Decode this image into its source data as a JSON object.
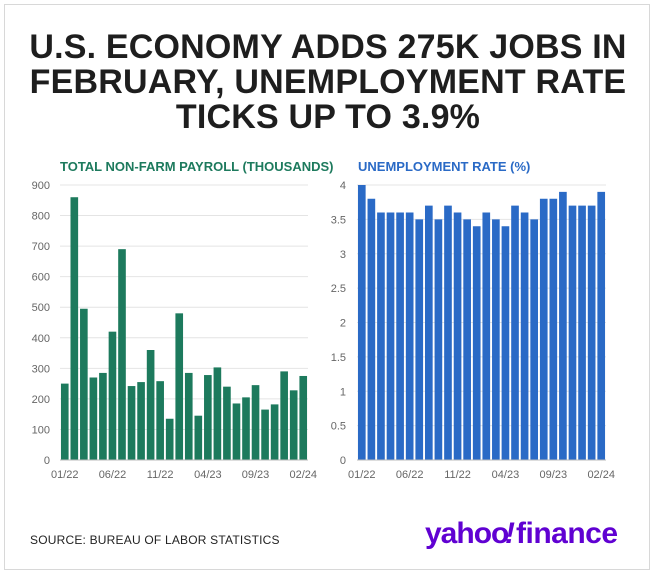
{
  "headline": {
    "line1": "U.S. ECONOMY ADDS 275K JOBS IN",
    "line2": "FEBRUARY, UNEMPLOYMENT RATE",
    "line3": "TICKS UP TO 3.9%"
  },
  "source": "SOURCE: BUREAU OF LABOR STATISTICS",
  "logo": {
    "text_part1": "yahoo",
    "text_part2": "!",
    "text_part3": "finance"
  },
  "colors": {
    "payroll": "#1d7a5d",
    "unemployment": "#2a6ac6",
    "logo": "#6001d2",
    "headline": "#1e1e1e"
  },
  "chart_data": [
    {
      "type": "bar",
      "title": "TOTAL NON-FARM PAYROLL (THOUSANDS)",
      "ylim": [
        0,
        900
      ],
      "yticks": [
        "0",
        "100",
        "200",
        "300",
        "400",
        "500",
        "600",
        "700",
        "800",
        "900"
      ],
      "xticks": [
        "01/22",
        "06/22",
        "11/22",
        "04/23",
        "09/23",
        "02/24"
      ],
      "values": [
        250,
        860,
        495,
        270,
        285,
        420,
        690,
        242,
        255,
        360,
        258,
        135,
        480,
        285,
        145,
        278,
        303,
        240,
        185,
        205,
        245,
        165,
        182,
        290,
        228,
        275
      ]
    },
    {
      "type": "bar",
      "title": "UNEMPLOYMENT RATE (%)",
      "ylim": [
        0,
        4
      ],
      "yticks": [
        "0",
        "0.5",
        "1",
        "1.5",
        "2",
        "2.5",
        "3",
        "3.5",
        "4"
      ],
      "xticks": [
        "01/22",
        "06/22",
        "11/22",
        "04/23",
        "09/23",
        "02/24"
      ],
      "values": [
        4.0,
        3.8,
        3.6,
        3.6,
        3.6,
        3.6,
        3.5,
        3.7,
        3.5,
        3.7,
        3.6,
        3.5,
        3.4,
        3.6,
        3.5,
        3.4,
        3.7,
        3.6,
        3.5,
        3.8,
        3.8,
        3.9,
        3.7,
        3.7,
        3.7,
        3.9
      ]
    }
  ]
}
